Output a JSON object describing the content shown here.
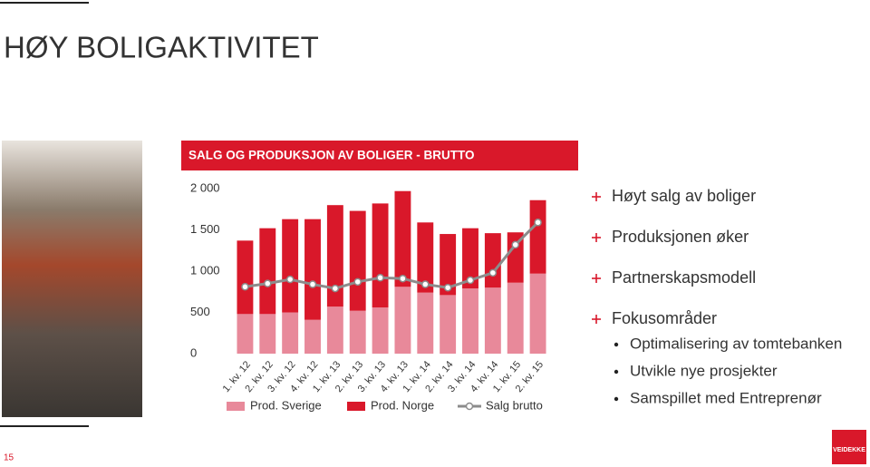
{
  "slide": {
    "title": "HØY BOLIGAKTIVITET",
    "page_number": "15",
    "logo": "VEIDEKKE",
    "bullets": [
      {
        "text": "Høyt salg av boliger"
      },
      {
        "text": "Produksjonen øker"
      },
      {
        "text": "Partnerskapsmodell"
      },
      {
        "text": "Fokusområder",
        "sub": [
          "Optimalisering av tomtebanken",
          "Utvikle nye prosjekter",
          "Samspillet med Entreprenør"
        ]
      }
    ]
  },
  "chart_data": {
    "type": "stacked-bar-line",
    "title": "SALG OG PRODUKSJON AV BOLIGER - BRUTTO",
    "categories": [
      "1. kv. 12",
      "2. kv. 12",
      "3. kv. 12",
      "4. kv. 12",
      "1. kv. 13",
      "2. kv. 13",
      "3. kv. 13",
      "4. kv. 13",
      "1. kv. 14",
      "2. kv. 14",
      "3. kv. 14",
      "4. kv. 14",
      "1. kv. 15",
      "2. kv. 15"
    ],
    "series": [
      {
        "name": "Prod. Sverige",
        "color": "#e8899a",
        "kind": "bar",
        "values": [
          480,
          480,
          500,
          410,
          570,
          520,
          560,
          810,
          740,
          710,
          790,
          800,
          860,
          970
        ]
      },
      {
        "name": "Prod. Norge",
        "color": "#d9182a",
        "kind": "bar",
        "values": [
          890,
          1040,
          1130,
          1220,
          1230,
          1210,
          1260,
          1160,
          850,
          740,
          730,
          660,
          610,
          890
        ]
      },
      {
        "name": "Salg brutto",
        "color": "#8c8c8c",
        "kind": "line",
        "values": [
          810,
          850,
          900,
          840,
          790,
          870,
          920,
          910,
          840,
          800,
          890,
          980,
          1320,
          1590
        ]
      }
    ],
    "ylim": [
      0,
      2000
    ],
    "yticks": [
      0,
      500,
      {
        "value": 1000,
        "label": "1 000"
      },
      {
        "value": 1500,
        "label": "1 500"
      },
      {
        "value": 2000,
        "label": "2 000"
      }
    ],
    "grid": false,
    "legend": "bottom"
  }
}
